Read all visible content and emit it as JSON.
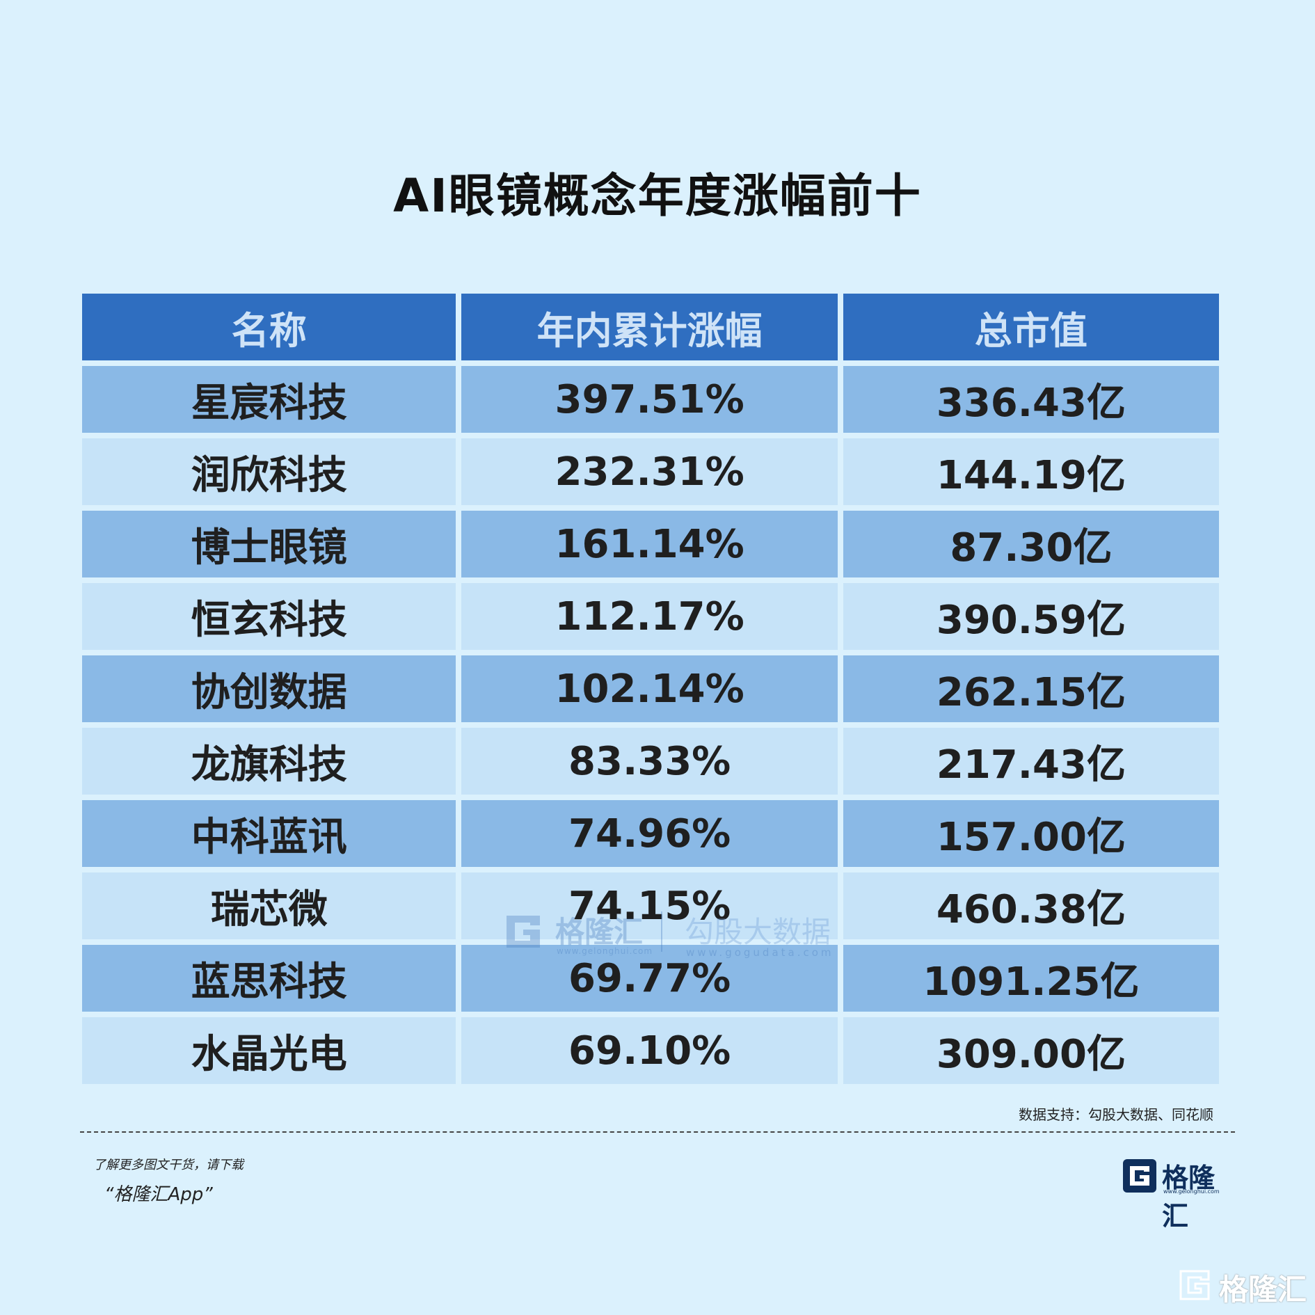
{
  "title": "AI眼镜概念年度涨幅前十",
  "table": {
    "headers": [
      "名称",
      "年内累计涨幅",
      "总市值"
    ],
    "rows": [
      [
        "星宸科技",
        "397.51%",
        "336.43亿"
      ],
      [
        "润欣科技",
        "232.31%",
        "144.19亿"
      ],
      [
        "博士眼镜",
        "161.14%",
        "87.30亿"
      ],
      [
        "恒玄科技",
        "112.17%",
        "390.59亿"
      ],
      [
        "协创数据",
        "102.14%",
        "262.15亿"
      ],
      [
        "龙旗科技",
        "83.33%",
        "217.43亿"
      ],
      [
        "中科蓝讯",
        "74.96%",
        "157.00亿"
      ],
      [
        "瑞芯微",
        "74.15%",
        "460.38亿"
      ],
      [
        "蓝思科技",
        "69.77%",
        "1091.25亿"
      ],
      [
        "水晶光电",
        "69.10%",
        "309.00亿"
      ]
    ]
  },
  "watermark": {
    "brand": "格隆汇",
    "brand_url": "www.gelonghui.com",
    "data_brand": "勾股大数据",
    "data_url": "www.gogudata.com"
  },
  "source": "数据支持：勾股大数据、同花顺",
  "promo": {
    "line1": "了解更多图文干货，请下载",
    "line2": "“格隆汇App”"
  },
  "logo": {
    "name": "格隆汇",
    "url": "www.gelonghui.com"
  },
  "corner_logo": {
    "name": "格隆汇"
  },
  "colors": {
    "background": "#dbf1fd",
    "header": "#2f6ec0",
    "row_dark": "#8ab9e6",
    "row_light": "#c6e3f8"
  }
}
